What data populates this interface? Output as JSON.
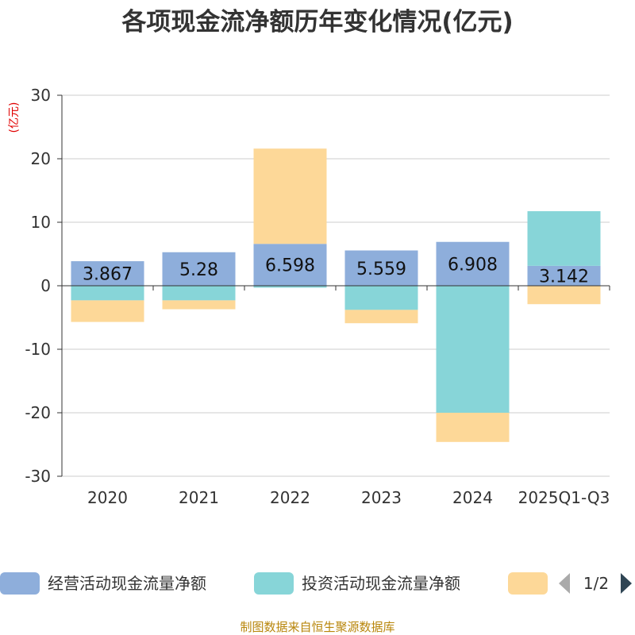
{
  "chart_data": {
    "type": "bar",
    "stacked": true,
    "title": "各项现金流净额历年变化情况(亿元)",
    "ylabel": "(亿元)",
    "xlabel": "",
    "ylim": [
      -30,
      30
    ],
    "yticks": [
      30,
      20,
      10,
      0,
      -10,
      -20,
      -30
    ],
    "grid": true,
    "categories": [
      "2020",
      "2021",
      "2022",
      "2023",
      "2024",
      "2025Q1-Q3"
    ],
    "series": [
      {
        "name": "经营活动现金流量净额",
        "color": "#8eaedb",
        "values": [
          3.867,
          5.28,
          6.598,
          5.559,
          6.908,
          3.142
        ],
        "show_labels": true
      },
      {
        "name": "投资活动现金流量净额",
        "color": "#87d5d8",
        "values": [
          -2.3,
          -2.3,
          -0.3,
          -3.8,
          -20.0,
          8.6
        ],
        "show_labels": false
      },
      {
        "name": "",
        "color": "#fdd898",
        "values": [
          -3.4,
          -1.4,
          15.0,
          -2.1,
          -4.6,
          -2.9
        ],
        "show_labels": false
      }
    ],
    "legend": {
      "position": "bottom",
      "page": "1/2"
    },
    "source": "制图数据来自恒生聚源数据库"
  }
}
